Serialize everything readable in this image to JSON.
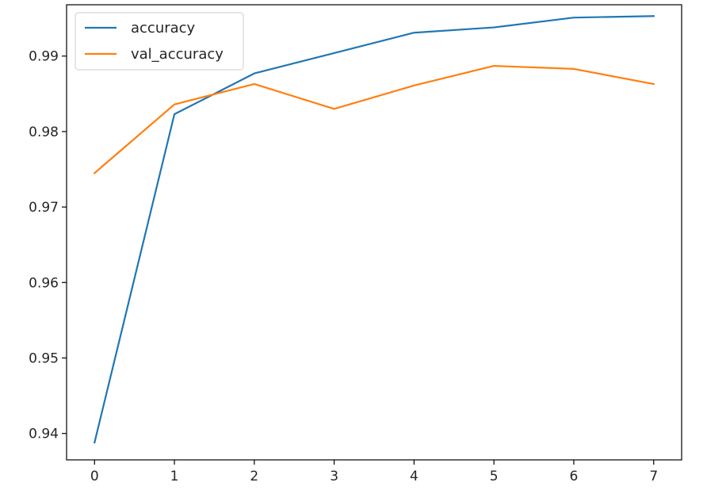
{
  "chart_data": {
    "type": "line",
    "title": "",
    "xlabel": "",
    "ylabel": "",
    "x": [
      0,
      1,
      2,
      3,
      4,
      5,
      6,
      7
    ],
    "xlim": [
      -0.35,
      7.35
    ],
    "ylim": [
      0.9365,
      0.9968
    ],
    "x_ticks": [
      0,
      1,
      2,
      3,
      4,
      5,
      6,
      7
    ],
    "y_ticks": [
      0.94,
      0.95,
      0.96,
      0.97,
      0.98,
      0.99
    ],
    "grid": false,
    "legend_placement": "upper-left",
    "series": [
      {
        "name": "accuracy",
        "color": "#1f77b4",
        "values": [
          0.9388,
          0.9823,
          0.9877,
          0.9904,
          0.9931,
          0.9938,
          0.9951,
          0.9953
        ]
      },
      {
        "name": "val_accuracy",
        "color": "#ff7f0e",
        "values": [
          0.9745,
          0.9836,
          0.9863,
          0.983,
          0.9861,
          0.9887,
          0.9883,
          0.9863
        ]
      }
    ]
  }
}
